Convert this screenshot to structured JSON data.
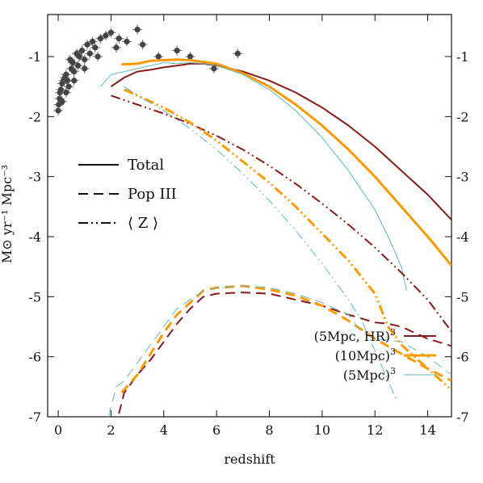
{
  "chart_data": {
    "type": "line",
    "xlabel": "redshift",
    "ylabel": "M⊙ yr⁻¹ Mpc⁻³",
    "xlim": [
      -0.4,
      14.9
    ],
    "ylim": [
      -7,
      -0.3
    ],
    "xticks": [
      0,
      2,
      4,
      6,
      8,
      10,
      12,
      14
    ],
    "yticks": [
      -7,
      -6,
      -5,
      -4,
      -3,
      -2,
      -1
    ],
    "style_legend": [
      {
        "label": "Total",
        "dash": "solid"
      },
      {
        "label": "Pop III",
        "dash": "dashed"
      },
      {
        "label": "⟨ Z ⟩",
        "dash": "dashdot"
      }
    ],
    "run_legend": [
      {
        "label": "(5Mpc, HR)",
        "sup": "3",
        "color": "#8b1a1a"
      },
      {
        "label": "(10Mpc)",
        "sup": "3",
        "color": "#ff9900"
      },
      {
        "label": "(5Mpc)",
        "sup": "3",
        "color": "#5fb8be"
      }
    ],
    "observations": {
      "color": "#444444",
      "points": [
        {
          "x": 0.0,
          "y": -1.9
        },
        {
          "x": 0.02,
          "y": -1.8
        },
        {
          "x": 0.05,
          "y": -1.7
        },
        {
          "x": 0.07,
          "y": -1.6
        },
        {
          "x": 0.1,
          "y": -1.55
        },
        {
          "x": 0.15,
          "y": -1.45
        },
        {
          "x": 0.2,
          "y": -1.4
        },
        {
          "x": 0.25,
          "y": -1.35
        },
        {
          "x": 0.3,
          "y": -1.3
        },
        {
          "x": 0.35,
          "y": -1.4
        },
        {
          "x": 0.4,
          "y": -1.5
        },
        {
          "x": 0.45,
          "y": -1.05
        },
        {
          "x": 0.5,
          "y": -1.2
        },
        {
          "x": 0.55,
          "y": -1.1
        },
        {
          "x": 0.6,
          "y": -1.25
        },
        {
          "x": 0.7,
          "y": -0.95
        },
        {
          "x": 0.75,
          "y": -1.15
        },
        {
          "x": 0.8,
          "y": -1.0
        },
        {
          "x": 0.9,
          "y": -0.9
        },
        {
          "x": 1.0,
          "y": -1.05
        },
        {
          "x": 1.1,
          "y": -0.8
        },
        {
          "x": 1.2,
          "y": -0.95
        },
        {
          "x": 1.3,
          "y": -0.75
        },
        {
          "x": 1.4,
          "y": -0.85
        },
        {
          "x": 1.6,
          "y": -0.7
        },
        {
          "x": 1.8,
          "y": -0.65
        },
        {
          "x": 2.0,
          "y": -0.6
        },
        {
          "x": 2.3,
          "y": -0.7
        },
        {
          "x": 2.6,
          "y": -0.75
        },
        {
          "x": 3.0,
          "y": -0.55
        },
        {
          "x": 3.2,
          "y": -0.8
        },
        {
          "x": 3.8,
          "y": -1.0
        },
        {
          "x": 4.5,
          "y": -0.9
        },
        {
          "x": 5.0,
          "y": -1.0
        },
        {
          "x": 5.9,
          "y": -1.2
        },
        {
          "x": 6.8,
          "y": -0.95
        },
        {
          "x": 0.15,
          "y": -1.75
        },
        {
          "x": 0.3,
          "y": -1.6
        },
        {
          "x": 0.6,
          "y": -1.4
        },
        {
          "x": 1.0,
          "y": -1.2
        },
        {
          "x": 1.5,
          "y": -1.0
        },
        {
          "x": 2.2,
          "y": -0.85
        }
      ]
    },
    "series": [
      {
        "name": "(5Mpc, HR)³ Total",
        "color": "#8b1a1a",
        "dash": "solid",
        "width": 2,
        "x": [
          2.0,
          2.5,
          3.0,
          3.5,
          4.0,
          4.5,
          5.0,
          5.5,
          6.0,
          7.0,
          8.0,
          9.0,
          10.0,
          11.0,
          12.0,
          13.0,
          14.0,
          14.9
        ],
        "y": [
          -1.5,
          -1.35,
          -1.25,
          -1.22,
          -1.18,
          -1.15,
          -1.12,
          -1.12,
          -1.15,
          -1.25,
          -1.4,
          -1.6,
          -1.85,
          -2.15,
          -2.5,
          -2.9,
          -3.3,
          -3.72
        ]
      },
      {
        "name": "(10Mpc)³ Total",
        "color": "#ff9900",
        "dash": "solid",
        "width": 3,
        "x": [
          2.4,
          3.0,
          3.5,
          4.0,
          4.5,
          5.0,
          6.0,
          7.0,
          8.0,
          9.0,
          10.0,
          11.0,
          12.0,
          13.0,
          14.0,
          14.9
        ],
        "y": [
          -1.13,
          -1.12,
          -1.07,
          -1.06,
          -1.05,
          -1.06,
          -1.12,
          -1.28,
          -1.5,
          -1.8,
          -2.15,
          -2.55,
          -3.0,
          -3.5,
          -4.0,
          -4.48
        ]
      },
      {
        "name": "(5Mpc)³ Total",
        "color": "#5fb8be",
        "dash": "solid",
        "width": 1,
        "x": [
          1.6,
          2.0,
          2.5,
          3.0,
          3.5,
          4.0,
          4.5,
          5.0,
          5.5,
          6.0,
          7.0,
          8.0,
          9.0,
          10.0,
          11.0,
          12.0,
          12.5,
          13.0,
          13.2
        ],
        "y": [
          -1.5,
          -1.3,
          -1.25,
          -1.2,
          -1.15,
          -1.1,
          -1.12,
          -1.1,
          -1.12,
          -1.15,
          -1.3,
          -1.55,
          -1.9,
          -2.35,
          -2.9,
          -3.55,
          -4.0,
          -4.5,
          -4.9
        ]
      },
      {
        "name": "(5Mpc, HR)³ Pop III",
        "color": "#8b1a1a",
        "dash": "dashed",
        "width": 2,
        "x": [
          2.3,
          2.5,
          3.0,
          3.5,
          4.0,
          4.5,
          5.0,
          5.5,
          6.0,
          7.0,
          8.0,
          9.0,
          10.0,
          11.0,
          12.0,
          12.5,
          13.0,
          14.0,
          14.9
        ],
        "y": [
          -6.95,
          -6.6,
          -6.3,
          -6.05,
          -5.75,
          -5.45,
          -5.2,
          -5.0,
          -4.95,
          -4.93,
          -4.95,
          -5.05,
          -5.15,
          -5.3,
          -5.43,
          -5.45,
          -5.5,
          -5.7,
          -5.82
        ]
      },
      {
        "name": "(10Mpc)³ Pop III",
        "color": "#ff9900",
        "dash": "dashed",
        "width": 3,
        "x": [
          2.4,
          3.0,
          3.5,
          4.0,
          4.5,
          5.0,
          5.5,
          6.0,
          7.0,
          8.0,
          9.0,
          10.0,
          11.0,
          12.0,
          13.0,
          14.0,
          14.9
        ],
        "y": [
          -6.6,
          -6.3,
          -5.95,
          -5.6,
          -5.3,
          -5.1,
          -4.9,
          -4.85,
          -4.82,
          -4.88,
          -4.98,
          -5.15,
          -5.4,
          -5.7,
          -5.95,
          -6.2,
          -6.4
        ]
      },
      {
        "name": "(5Mpc)³ Pop III",
        "color": "#5fb8be",
        "dash": "dashed",
        "width": 1,
        "x": [
          1.9,
          2.2,
          2.5,
          3.0,
          3.5,
          4.0,
          4.5,
          5.0,
          5.5,
          6.0,
          7.0,
          8.0,
          9.0,
          10.0,
          11.0,
          11.5,
          12.0,
          13.0,
          14.0,
          14.9
        ],
        "y": [
          -7.0,
          -6.5,
          -6.4,
          -6.1,
          -5.8,
          -5.5,
          -5.2,
          -5.05,
          -4.9,
          -4.85,
          -4.82,
          -4.85,
          -4.95,
          -5.1,
          -5.3,
          -5.6,
          -5.7,
          -5.75,
          -6.0,
          -6.3
        ]
      },
      {
        "name": "(5Mpc, HR)³ ⟨Z⟩",
        "color": "#8b1a1a",
        "dash": "dashdot",
        "width": 2,
        "x": [
          2.0,
          3.0,
          4.0,
          5.0,
          6.0,
          7.0,
          8.0,
          9.0,
          10.0,
          11.0,
          12.0,
          13.0,
          14.0,
          14.9
        ],
        "y": [
          -1.65,
          -1.8,
          -1.95,
          -2.12,
          -2.32,
          -2.55,
          -2.82,
          -3.12,
          -3.45,
          -3.8,
          -4.18,
          -4.6,
          -5.05,
          -5.58
        ]
      },
      {
        "name": "(10Mpc)³ ⟨Z⟩",
        "color": "#ff9900",
        "dash": "dashdot",
        "width": 3,
        "x": [
          2.5,
          3.0,
          4.0,
          5.0,
          6.0,
          7.0,
          8.0,
          9.0,
          10.0,
          11.0,
          12.0,
          12.5,
          13.0,
          14.0,
          14.9
        ],
        "y": [
          -1.55,
          -1.65,
          -1.85,
          -2.1,
          -2.4,
          -2.75,
          -3.1,
          -3.5,
          -3.95,
          -4.4,
          -4.95,
          -5.5,
          -5.8,
          -6.2,
          -6.55
        ]
      },
      {
        "name": "(5Mpc)³ ⟨Z⟩",
        "color": "#5fb8be",
        "dash": "dashdot",
        "width": 1,
        "x": [
          2.5,
          3.0,
          4.0,
          5.0,
          6.0,
          7.0,
          8.0,
          9.0,
          10.0,
          11.0,
          11.5,
          12.0,
          12.5,
          12.8
        ],
        "y": [
          -1.5,
          -1.65,
          -1.9,
          -2.2,
          -2.55,
          -2.95,
          -3.4,
          -3.9,
          -4.45,
          -5.05,
          -5.4,
          -5.9,
          -6.4,
          -6.7
        ]
      }
    ]
  }
}
